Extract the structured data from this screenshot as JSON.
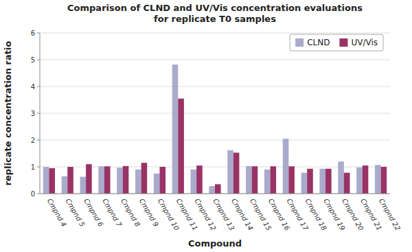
{
  "chart_data": {
    "type": "bar",
    "title": "Comparison of CLND and UV/Vis concentration evaluations\nfor replicate T0 samples",
    "xlabel": "Compound",
    "ylabel": "replicate concentration ratio",
    "categories": [
      "Cmpnd 4",
      "Cmpnd 5",
      "Cmpnd 6",
      "Cmpnd 7",
      "Cmpnd 8",
      "Cmpnd 9",
      "Cmpnd 10",
      "Cmpnd 11",
      "Cmpnd 12",
      "Cmpnd 13",
      "Cmpnd 14",
      "Cmpnd 15",
      "Cmpnd 16",
      "Cmpnd 17",
      "Cmpnd 18",
      "Cmpnd 19",
      "Cmpnd 20",
      "Cmpnd 21",
      "Cmpnd 22"
    ],
    "series": [
      {
        "name": "CLND",
        "color": "#AAAACC",
        "values": [
          1.0,
          0.65,
          0.63,
          1.02,
          0.97,
          0.9,
          0.75,
          4.82,
          0.9,
          0.28,
          1.62,
          1.03,
          0.9,
          2.05,
          0.78,
          0.93,
          1.2,
          0.98,
          1.07
        ]
      },
      {
        "name": "UV/Vis",
        "color": "#993366",
        "values": [
          0.95,
          1.0,
          1.1,
          1.02,
          1.03,
          1.15,
          1.0,
          3.55,
          1.05,
          0.35,
          1.53,
          1.02,
          1.02,
          1.02,
          0.93,
          0.93,
          0.78,
          1.05,
          1.0
        ]
      }
    ],
    "ylim": [
      0,
      6
    ],
    "yticks": [
      0,
      1,
      2,
      3,
      4,
      5,
      6
    ],
    "grid": true,
    "legend": "upper right"
  }
}
